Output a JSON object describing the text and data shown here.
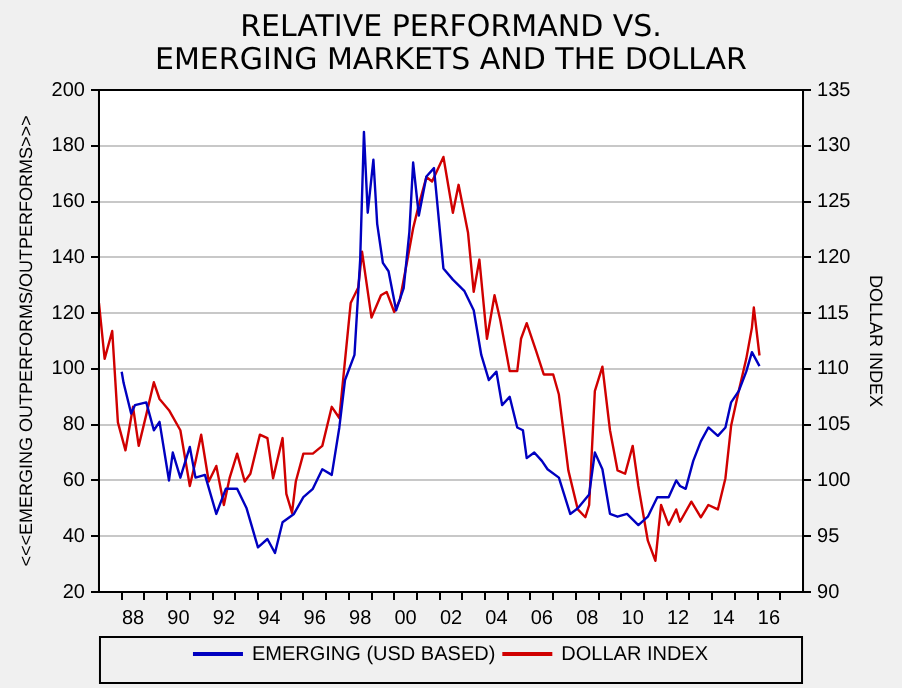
{
  "chart_data": {
    "type": "line",
    "title": "RELATIVE PERFORMAND VS. EMERGING MARKETS AND THE DOLLAR",
    "ylabel": "<<<EMERGING OUTPERFORMS/OUTPERFORMS>>>",
    "y2label": "DOLLAR INDEX",
    "xlim": [
      "1987-01",
      "2018-01"
    ],
    "xticks": [
      {
        "value": "1988-01",
        "label": null
      },
      {
        "value": "1988-07",
        "label": "88"
      },
      {
        "value": "1989-01",
        "label": null
      },
      {
        "value": "1990-01",
        "label": null
      },
      {
        "value": "1990-07",
        "label": "90"
      },
      {
        "value": "1991-01",
        "label": null
      },
      {
        "value": "1992-01",
        "label": null
      },
      {
        "value": "1992-07",
        "label": "92"
      },
      {
        "value": "1993-01",
        "label": null
      },
      {
        "value": "1994-01",
        "label": null
      },
      {
        "value": "1994-07",
        "label": "94"
      },
      {
        "value": "1995-01",
        "label": null
      },
      {
        "value": "1996-01",
        "label": null
      },
      {
        "value": "1996-07",
        "label": "96"
      },
      {
        "value": "1997-01",
        "label": null
      },
      {
        "value": "1998-01",
        "label": null
      },
      {
        "value": "1998-07",
        "label": "98"
      },
      {
        "value": "1999-01",
        "label": null
      },
      {
        "value": "2000-01",
        "label": null
      },
      {
        "value": "2000-07",
        "label": "00"
      },
      {
        "value": "2001-01",
        "label": null
      },
      {
        "value": "2002-01",
        "label": null
      },
      {
        "value": "2002-07",
        "label": "02"
      },
      {
        "value": "2003-01",
        "label": null
      },
      {
        "value": "2004-01",
        "label": null
      },
      {
        "value": "2004-07",
        "label": "04"
      },
      {
        "value": "2005-01",
        "label": null
      },
      {
        "value": "2006-01",
        "label": null
      },
      {
        "value": "2006-07",
        "label": "06"
      },
      {
        "value": "2007-01",
        "label": null
      },
      {
        "value": "2008-01",
        "label": null
      },
      {
        "value": "2008-07",
        "label": "08"
      },
      {
        "value": "2009-01",
        "label": null
      },
      {
        "value": "2010-01",
        "label": null
      },
      {
        "value": "2010-07",
        "label": "10"
      },
      {
        "value": "2011-01",
        "label": null
      },
      {
        "value": "2012-01",
        "label": null
      },
      {
        "value": "2012-07",
        "label": "12"
      },
      {
        "value": "2013-01",
        "label": null
      },
      {
        "value": "2014-01",
        "label": null
      },
      {
        "value": "2014-07",
        "label": "14"
      },
      {
        "value": "2015-01",
        "label": null
      },
      {
        "value": "2016-01",
        "label": null
      },
      {
        "value": "2016-07",
        "label": "16"
      },
      {
        "value": "2017-01",
        "label": null
      }
    ],
    "ylim": [
      20,
      200
    ],
    "yticks": [
      20,
      40,
      60,
      80,
      100,
      120,
      140,
      160,
      180,
      200
    ],
    "y2lim": [
      90,
      135
    ],
    "y2ticks": [
      90,
      95,
      100,
      105,
      110,
      115,
      120,
      125,
      130,
      135
    ],
    "grid": "y",
    "legend": "bottom",
    "marker": "none",
    "line_style": "solid",
    "series": [
      {
        "name": "EMERGING (USD BASED)",
        "color": "#0000c0",
        "x": [
          "1988-01",
          "1988-02",
          "1988-06",
          "1988-08",
          "1989-02",
          "1989-06",
          "1989-09",
          "1990-02",
          "1990-04",
          "1990-08",
          "1991-01",
          "1991-04",
          "1991-09",
          "1992-03",
          "1992-08",
          "1993-02",
          "1993-07",
          "1994-01",
          "1994-06",
          "1994-10",
          "1995-02",
          "1995-08",
          "1996-01",
          "1996-06",
          "1996-11",
          "1997-04",
          "1997-08",
          "1997-11",
          "1998-04",
          "1998-07",
          "1998-09",
          "1998-11",
          "1999-02",
          "1999-04",
          "1999-07",
          "1999-10",
          "2000-02",
          "2000-06",
          "2000-09",
          "2000-11",
          "2001-02",
          "2001-06",
          "2001-10",
          "2002-03",
          "2002-08",
          "2003-02",
          "2003-07",
          "2003-11",
          "2004-03",
          "2004-07",
          "2004-10",
          "2005-02",
          "2005-06",
          "2005-09",
          "2005-11",
          "2006-03",
          "2006-07",
          "2006-10",
          "2007-04",
          "2007-10",
          "2008-02",
          "2008-08",
          "2008-11",
          "2009-03",
          "2009-07",
          "2009-11",
          "2010-04",
          "2010-10",
          "2011-03",
          "2011-08",
          "2012-02",
          "2012-06",
          "2012-08",
          "2012-11",
          "2013-03",
          "2013-07",
          "2013-11",
          "2014-04",
          "2014-08",
          "2014-11",
          "2015-03",
          "2015-07",
          "2015-10",
          "2016-02"
        ],
        "values": [
          99,
          95,
          84,
          87,
          88,
          78,
          81,
          60,
          70,
          61,
          72,
          61,
          62,
          48,
          57,
          57,
          50,
          36,
          39,
          34,
          45,
          48,
          54,
          57,
          64,
          62,
          79,
          96,
          105,
          139,
          185,
          156,
          175,
          152,
          138,
          135,
          121,
          129,
          149,
          174,
          155,
          169,
          172,
          136,
          132,
          128,
          121,
          105,
          96,
          99,
          87,
          90,
          79,
          78,
          68,
          70,
          67,
          64,
          61,
          48,
          50,
          55,
          70,
          64,
          48,
          47,
          48,
          44,
          47,
          54,
          54,
          60,
          58,
          57,
          67,
          74,
          79,
          76,
          79,
          88,
          92,
          99,
          106,
          101
        ]
      },
      {
        "name": "DOLLAR INDEX",
        "color": "#d00000",
        "axis": "y2",
        "x": [
          "1987-01",
          "1987-04",
          "1987-08",
          "1987-11",
          "1988-03",
          "1988-07",
          "1988-10",
          "1989-02",
          "1989-06",
          "1989-09",
          "1990-02",
          "1990-08",
          "1991-01",
          "1991-04",
          "1991-07",
          "1991-11",
          "1992-03",
          "1992-07",
          "1992-10",
          "1993-02",
          "1993-06",
          "1993-09",
          "1994-02",
          "1994-06",
          "1994-09",
          "1995-02",
          "1995-04",
          "1995-07",
          "1995-09",
          "1996-01",
          "1996-06",
          "1996-11",
          "1997-04",
          "1997-08",
          "1998-02",
          "1998-06",
          "1998-08",
          "1999-01",
          "1999-06",
          "1999-09",
          "2000-01",
          "2000-04",
          "2000-08",
          "2000-11",
          "2001-02",
          "2001-06",
          "2001-09",
          "2002-03",
          "2002-08",
          "2002-11",
          "2003-04",
          "2003-07",
          "2003-10",
          "2004-02",
          "2004-06",
          "2004-09",
          "2005-02",
          "2005-06",
          "2005-08",
          "2005-11",
          "2006-04",
          "2006-08",
          "2007-01",
          "2007-04",
          "2007-09",
          "2008-02",
          "2008-06",
          "2008-08",
          "2008-11",
          "2009-03",
          "2009-07",
          "2009-11",
          "2010-03",
          "2010-07",
          "2010-10",
          "2011-03",
          "2011-07",
          "2011-10",
          "2012-02",
          "2012-06",
          "2012-08",
          "2013-02",
          "2013-07",
          "2013-11",
          "2014-04",
          "2014-08",
          "2014-11",
          "2015-03",
          "2015-07",
          "2015-10",
          "2015-11",
          "2016-02"
        ],
        "values": [
          115.9,
          110.9,
          113.4,
          105.2,
          102.7,
          106.6,
          103.1,
          105.9,
          108.8,
          107.3,
          106.3,
          104.5,
          99.5,
          101.7,
          104.1,
          99.9,
          101.3,
          97.8,
          100.2,
          102.4,
          99.9,
          100.6,
          104.1,
          103.8,
          100.2,
          103.8,
          98.8,
          97.1,
          99.9,
          102.4,
          102.4,
          103.1,
          106.6,
          105.6,
          115.9,
          117.3,
          120.5,
          114.6,
          116.6,
          116.9,
          115.1,
          116.2,
          119.8,
          122.6,
          124.7,
          127.2,
          126.8,
          129.0,
          124.0,
          126.5,
          122.2,
          116.9,
          119.8,
          112.7,
          116.6,
          114.4,
          109.8,
          109.8,
          112.7,
          114.1,
          111.6,
          109.5,
          109.5,
          107.7,
          100.9,
          97.4,
          96.7,
          97.8,
          108.0,
          110.2,
          104.5,
          100.9,
          100.6,
          103.1,
          99.5,
          94.6,
          92.8,
          97.8,
          96.0,
          97.4,
          96.3,
          98.1,
          96.7,
          97.8,
          97.4,
          100.2,
          104.9,
          108.0,
          110.9,
          113.7,
          115.5,
          111.2
        ]
      }
    ]
  }
}
